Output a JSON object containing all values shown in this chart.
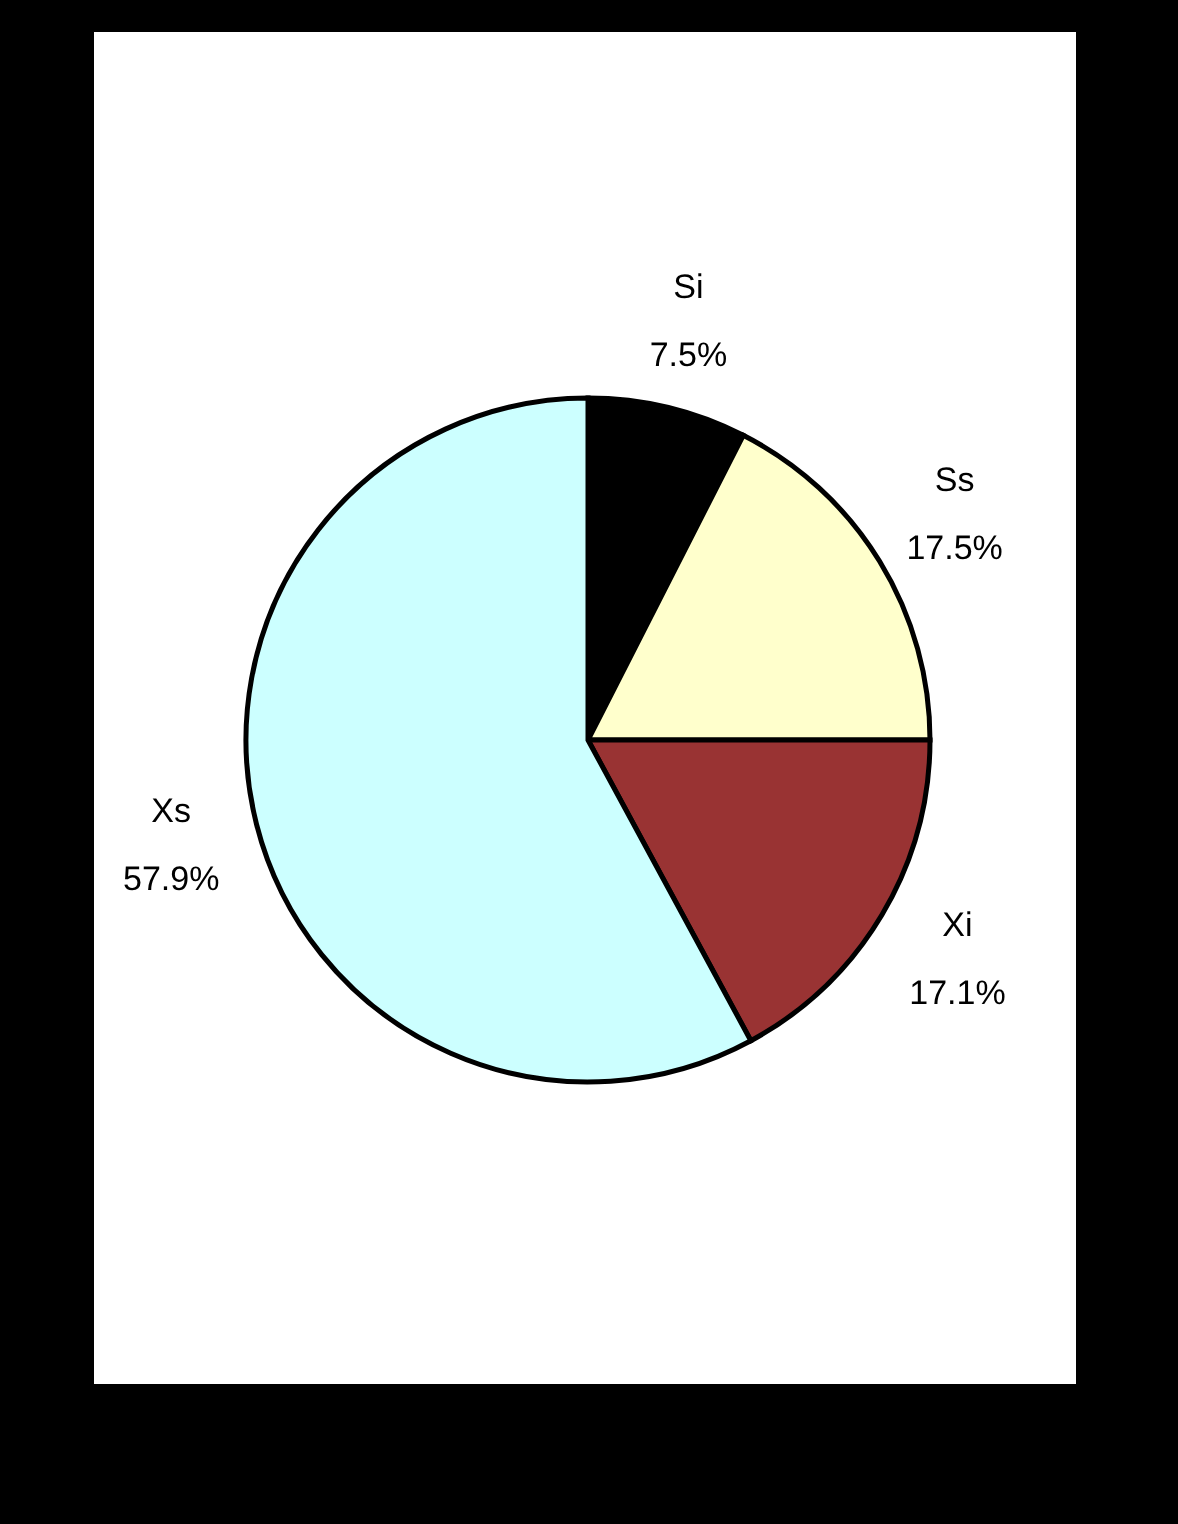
{
  "chart_data": {
    "type": "pie",
    "categories": [
      "Si",
      "Ss",
      "Xi",
      "Xs"
    ],
    "values": [
      7.5,
      17.5,
      17.1,
      57.9
    ],
    "value_labels": [
      "7.5%",
      "17.5%",
      "17.1%",
      "57.9%"
    ],
    "colors": [
      "#000000",
      "#ffffcc",
      "#993333",
      "#ccffff"
    ]
  }
}
